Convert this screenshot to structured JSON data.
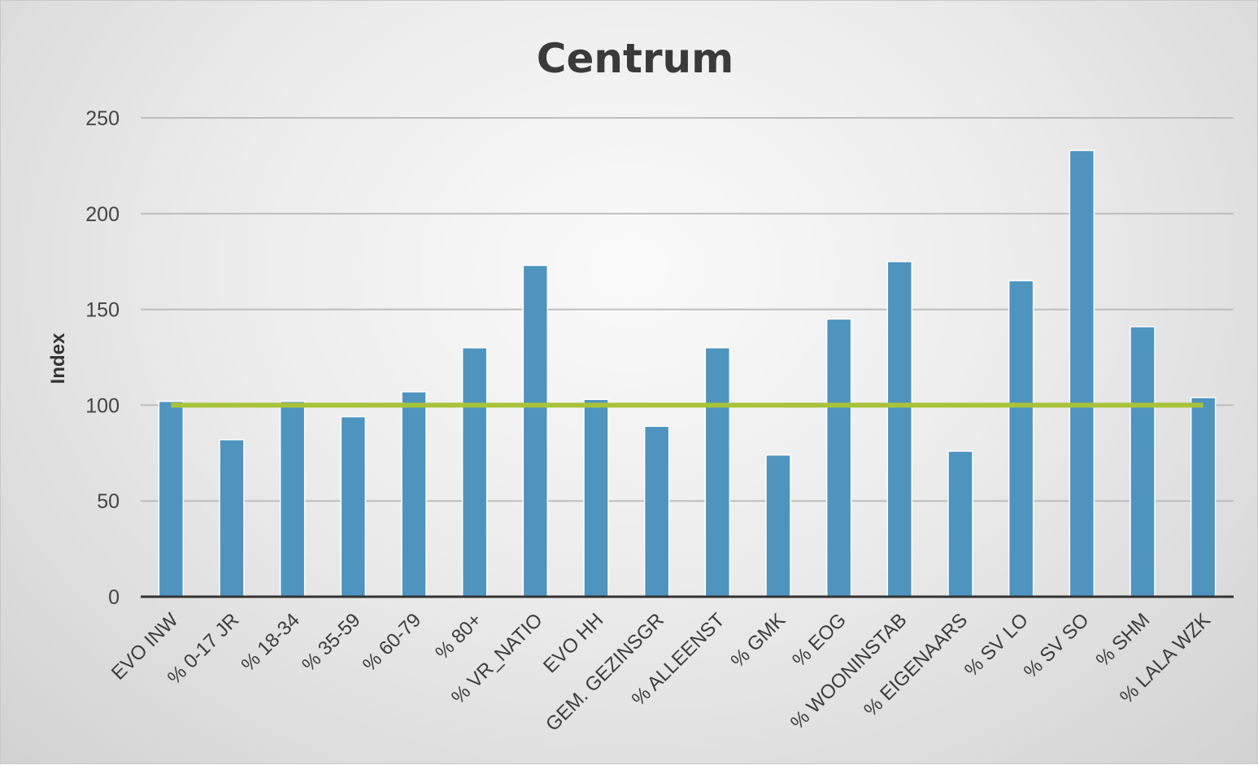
{
  "chart_data": {
    "type": "bar",
    "title": "Centrum",
    "xlabel": "",
    "ylabel": "Index",
    "ylim": [
      0,
      250
    ],
    "yticks": [
      0,
      50,
      100,
      150,
      200,
      250
    ],
    "grid": true,
    "categories": [
      "EVO INW",
      "% 0-17 JR",
      "% 18-34",
      "% 35-59",
      "% 60-79",
      "% 80+",
      "% VR_NATIO",
      "EVO HH",
      "GEM. GEZINSGR",
      "% ALLEENST",
      "% GMK",
      "% EOG",
      "% WOONINSTAB",
      "% EIGENAARS",
      "% SV LO",
      "% SV SO",
      "% SHM",
      "% LALA WZK"
    ],
    "values": [
      102,
      82,
      102,
      94,
      107,
      130,
      173,
      103,
      89,
      130,
      74,
      145,
      175,
      76,
      165,
      233,
      141,
      104
    ],
    "reference_line": {
      "type": "line",
      "value": 100
    },
    "colors": {
      "bar": "#4e94bf",
      "bar_edge": "#ffffff",
      "reference_line": "#a8c33a",
      "grid": "#bdbdbd",
      "baseline": "#333333"
    }
  }
}
